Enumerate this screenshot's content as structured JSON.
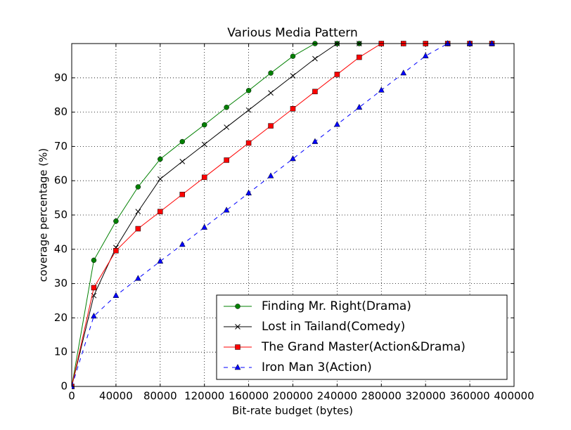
{
  "chart_data": {
    "type": "line",
    "title": "Various Media Pattern",
    "x_label": "Bit-rate budget (bytes)",
    "y_label": "coverage percentage (%)",
    "x": [
      0,
      20000,
      40000,
      60000,
      80000,
      100000,
      120000,
      140000,
      160000,
      180000,
      200000,
      220000,
      240000,
      260000,
      280000,
      300000,
      320000,
      340000,
      360000,
      380000
    ],
    "series": [
      {
        "name": "Finding Mr. Right(Drama)",
        "color": "#008000",
        "marker": "circle",
        "linestyle": "solid",
        "values": [
          0,
          36.8,
          48.2,
          58.2,
          66.3,
          71.4,
          76.3,
          81.4,
          86.3,
          91.4,
          96.3,
          100,
          100,
          100,
          100,
          100,
          100,
          100,
          100,
          100
        ]
      },
      {
        "name": "Lost in Tailand(Comedy)",
        "color": "#000000",
        "marker": "x",
        "linestyle": "solid",
        "values": [
          0,
          26.5,
          40.5,
          51,
          60.5,
          65.6,
          70.6,
          75.6,
          80.6,
          85.6,
          90.6,
          95.6,
          100,
          100,
          100,
          100,
          100,
          100,
          100,
          100
        ]
      },
      {
        "name": "The Grand Master(Action&Drama)",
        "color": "#ff0000",
        "marker": "square",
        "linestyle": "solid",
        "values": [
          0,
          28.8,
          39.6,
          46,
          51,
          56,
          61,
          66,
          71,
          76,
          81,
          86,
          91,
          96,
          100,
          100,
          100,
          100,
          100,
          100
        ]
      },
      {
        "name": "Iron Man 3(Action)",
        "color": "#0000ff",
        "marker": "triangle",
        "linestyle": "dashed",
        "values": [
          0,
          20.5,
          26.5,
          31.5,
          36.5,
          41.4,
          46.4,
          51.4,
          56.4,
          61.4,
          66.4,
          71.4,
          76.4,
          81.4,
          86.4,
          91.4,
          96.4,
          100,
          100,
          100
        ]
      }
    ],
    "xlim": [
      0,
      400000
    ],
    "xticks": [
      0,
      40000,
      80000,
      120000,
      160000,
      200000,
      240000,
      280000,
      320000,
      360000,
      400000
    ],
    "ylim": [
      0,
      100
    ],
    "yticks": [
      0,
      10,
      20,
      30,
      40,
      50,
      60,
      70,
      80,
      90
    ],
    "grid": true,
    "legend": "lower right"
  }
}
